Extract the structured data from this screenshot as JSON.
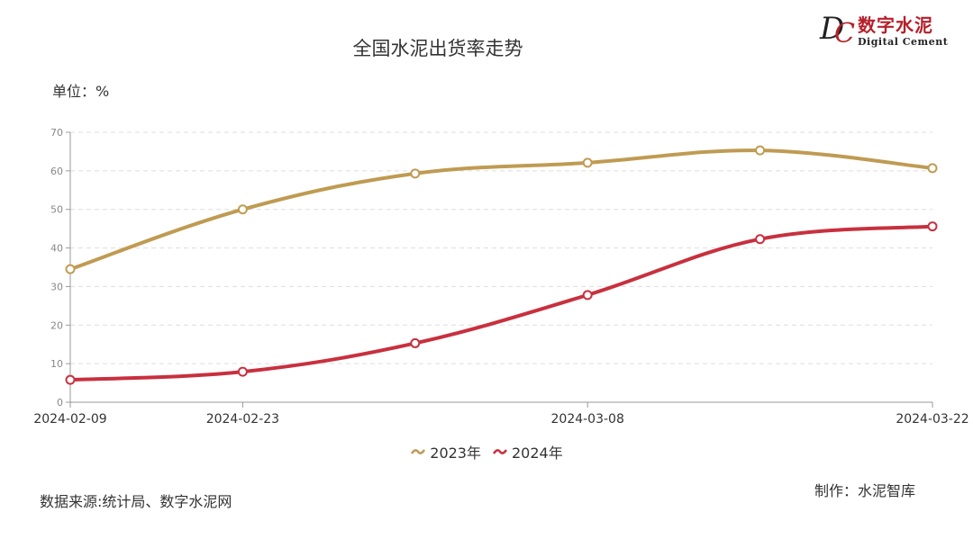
{
  "header": {
    "title": "全国水泥出货率走势",
    "unit": "单位：%"
  },
  "logo": {
    "letter_d": "D",
    "letter_c": "C",
    "name_cn": "数字水泥",
    "name_en": "Digital Cement"
  },
  "footer": {
    "source": "数据来源:统计局、数字水泥网",
    "credit": "制作：水泥智库"
  },
  "colors": {
    "series_2023": "#bf9b52",
    "series_2024": "#c8303e",
    "grid": "#dddddd",
    "axis": "#999999"
  },
  "chart_data": {
    "type": "line",
    "title": "全国水泥出货率走势",
    "ylabel": "单位：%",
    "ylim": [
      0,
      70
    ],
    "yticks": [
      0,
      10,
      20,
      30,
      40,
      50,
      60,
      70
    ],
    "x": [
      "2024-02-09",
      "2024-02-23",
      "2024-03-01",
      "2024-03-08",
      "2024-03-15",
      "2024-03-22"
    ],
    "xtick_labels": [
      "2024-02-09",
      "2024-02-23",
      "2024-03-08",
      "2024-03-22"
    ],
    "grid": true,
    "legend_position": "bottom",
    "series": [
      {
        "name": "2023年",
        "values": [
          34.5,
          50,
          59.3,
          62.1,
          65.3,
          60.7
        ]
      },
      {
        "name": "2024年",
        "values": [
          5.8,
          7.9,
          15.3,
          27.8,
          42.3,
          45.6
        ]
      }
    ]
  }
}
